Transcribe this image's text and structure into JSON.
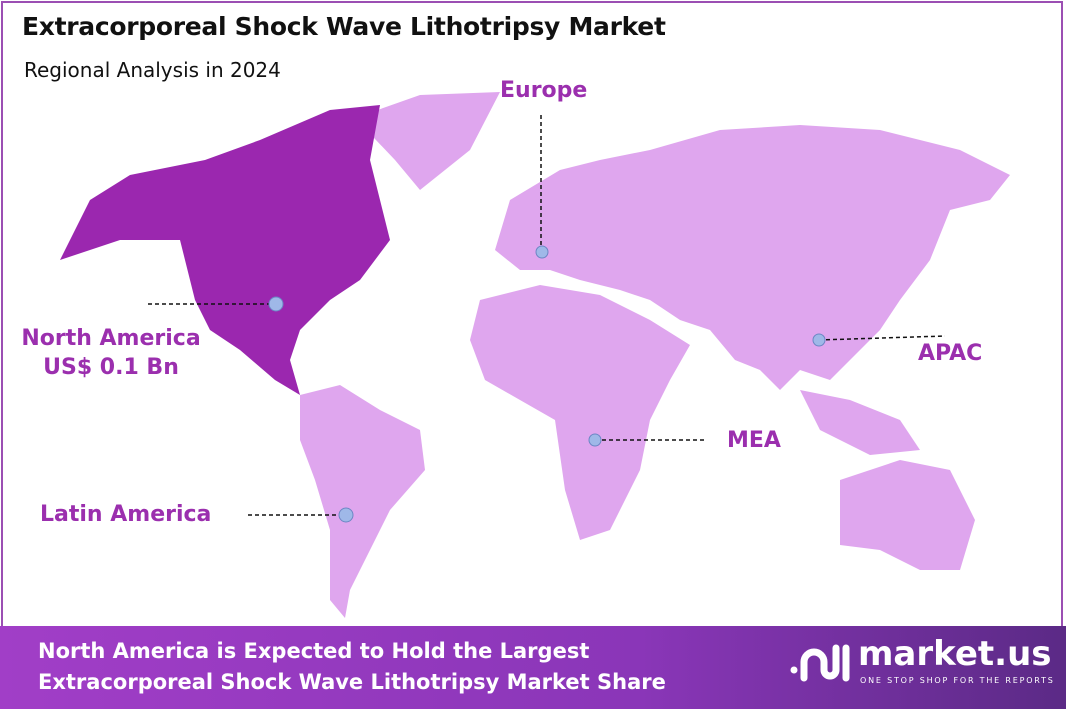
{
  "header": {
    "title": "Extracorporeal Shock Wave Lithotripsy Market",
    "subtitle": "Regional Analysis in 2024"
  },
  "regions": [
    {
      "name": "Europe",
      "highlighted": false
    },
    {
      "name": "North America",
      "value": "US$ 0.1 Bn",
      "highlighted": true
    },
    {
      "name": "APAC",
      "highlighted": false
    },
    {
      "name": "MEA",
      "highlighted": false
    },
    {
      "name": "Latin America",
      "highlighted": false
    }
  ],
  "colors": {
    "highlight": "#9b27af",
    "base": "#dfa6ee",
    "label": "#9b2fae",
    "marker": "#9fb8e8"
  },
  "footer": {
    "line1": "North America is Expected to Hold the Largest",
    "line2": "Extracorporeal Shock Wave Lithotripsy Market Share"
  },
  "logo": {
    "name": "market.us",
    "tagline": "ONE STOP SHOP FOR THE REPORTS"
  }
}
